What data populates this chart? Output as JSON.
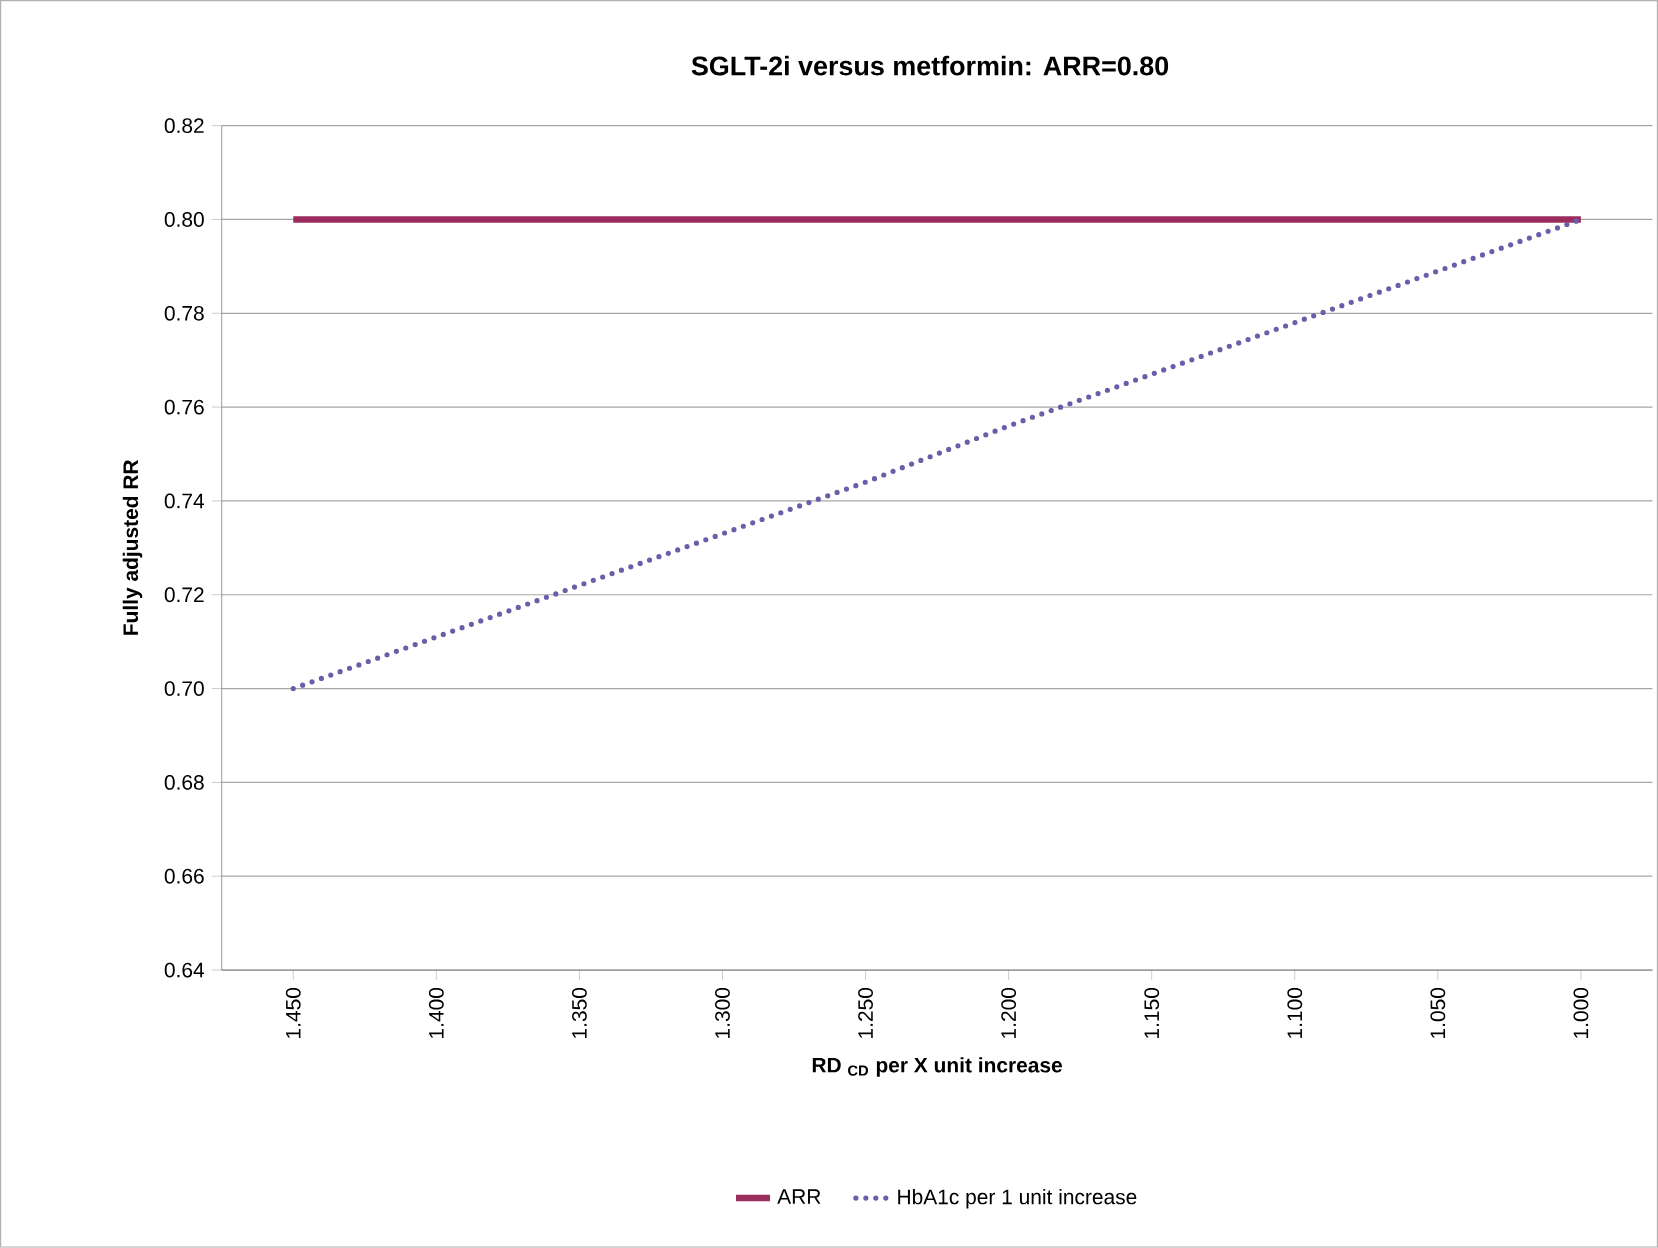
{
  "chart_data": {
    "type": "line",
    "title": "SGLT-2i versus metformin: ARR=0.80",
    "xlabel": "RD $_{CD}$ per X unit increase",
    "ylabel": "Fully adjusted RR",
    "categories": [
      "1.450",
      "1.400",
      "1.350",
      "1.300",
      "1.250",
      "1.200",
      "1.150",
      "1.100",
      "1.050",
      "1.000"
    ],
    "series": [
      {
        "name": "ARR",
        "color": "#9b2d5e",
        "line_style": "solid",
        "values": [
          0.8,
          0.8,
          0.8,
          0.8,
          0.8,
          0.8,
          0.8,
          0.8,
          0.8,
          0.8
        ]
      },
      {
        "name": "HbA1c per 1 unit increase",
        "color": "#6b5ea8",
        "line_style": "dotted",
        "values": [
          0.7,
          0.711,
          0.722,
          0.733,
          0.744,
          0.756,
          0.767,
          0.778,
          0.789,
          0.8
        ]
      }
    ],
    "ylim": [
      0.64,
      0.82
    ],
    "yticks": [
      {
        "value": 0.64,
        "label": "0.64"
      },
      {
        "value": 0.66,
        "label": "0.66"
      },
      {
        "value": 0.68,
        "label": "0.68"
      },
      {
        "value": 0.7,
        "label": "0.70"
      },
      {
        "value": 0.72,
        "label": "0.72"
      },
      {
        "value": 0.74,
        "label": "0.74"
      },
      {
        "value": 0.76,
        "label": "0.76"
      },
      {
        "value": 0.78,
        "label": "0.78"
      },
      {
        "value": 0.8,
        "label": "0.80"
      },
      {
        "value": 0.82,
        "label": "0.82"
      }
    ],
    "grid": "y",
    "legend": "bottom",
    "marker": "none"
  }
}
